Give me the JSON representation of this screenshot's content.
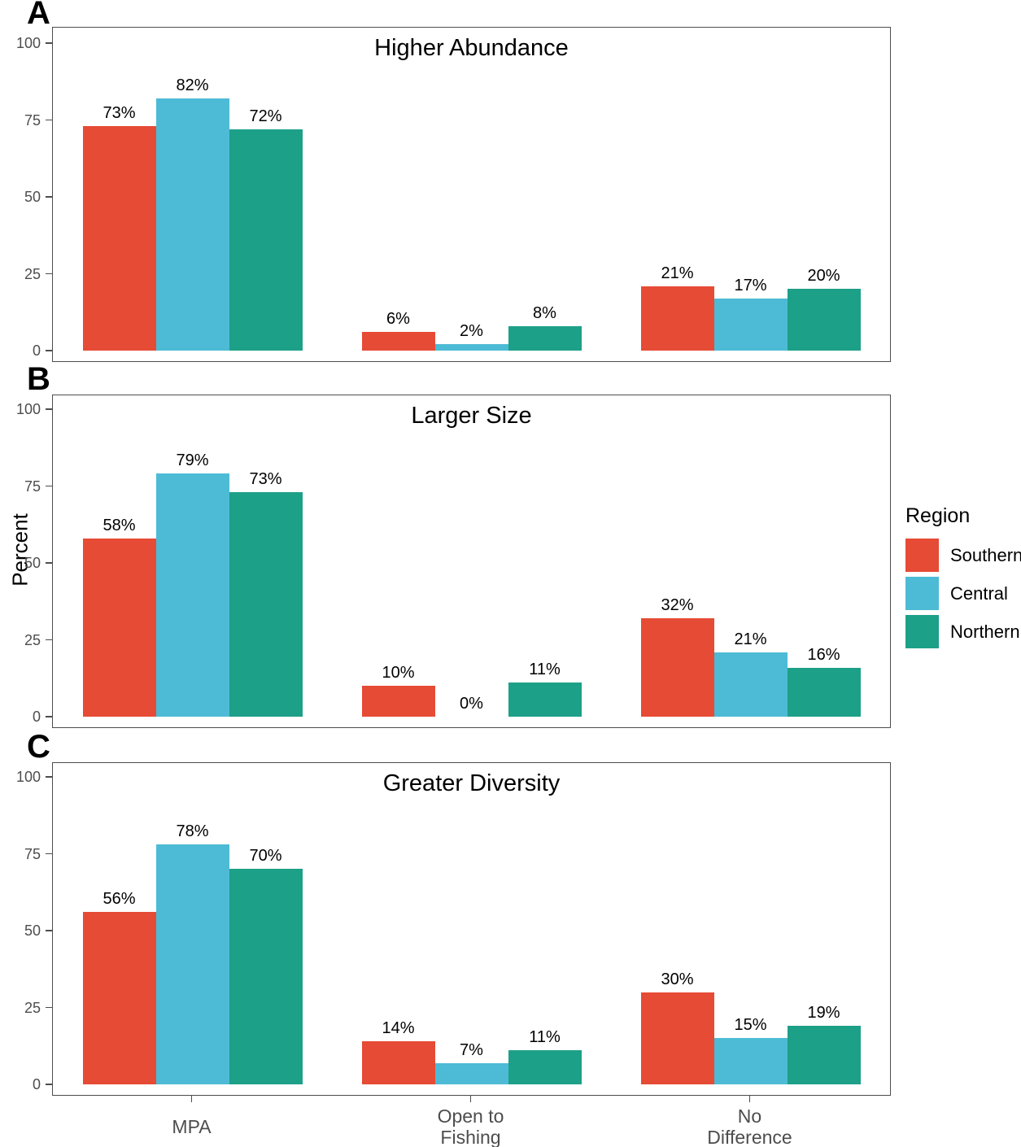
{
  "figure": {
    "y_axis_title": "Percent",
    "y_ticks": [
      0,
      25,
      50,
      75,
      100
    ],
    "x_categories": [
      "MPA",
      "Open to\nFishing",
      "No\nDifference"
    ],
    "axis_color": "#4d4d4d",
    "background": "#ffffff"
  },
  "legend": {
    "title": "Region",
    "position": "right",
    "items": [
      {
        "label": "Southern",
        "color": "#E64B35"
      },
      {
        "label": "Central",
        "color": "#4DBBD5"
      },
      {
        "label": "Northern",
        "color": "#1DA088"
      }
    ]
  },
  "chart_data": [
    {
      "type": "bar",
      "panel_label": "A",
      "title": "Higher Abundance",
      "categories": [
        "MPA",
        "Open to Fishing",
        "No Difference"
      ],
      "ylabel": "Percent",
      "ylim": [
        0,
        100
      ],
      "grid": false,
      "series": [
        {
          "name": "Southern",
          "color": "#E64B35",
          "values": [
            73,
            6,
            21
          ],
          "labels": [
            "73%",
            "6%",
            "21%"
          ]
        },
        {
          "name": "Central",
          "color": "#4DBBD5",
          "values": [
            82,
            2,
            17
          ],
          "labels": [
            "82%",
            "2%",
            "17%"
          ]
        },
        {
          "name": "Northern",
          "color": "#1DA088",
          "values": [
            72,
            8,
            20
          ],
          "labels": [
            "72%",
            "8%",
            "20%"
          ]
        }
      ]
    },
    {
      "type": "bar",
      "panel_label": "B",
      "title": "Larger Size",
      "categories": [
        "MPA",
        "Open to Fishing",
        "No Difference"
      ],
      "ylabel": "Percent",
      "ylim": [
        0,
        100
      ],
      "grid": false,
      "series": [
        {
          "name": "Southern",
          "color": "#E64B35",
          "values": [
            58,
            10,
            32
          ],
          "labels": [
            "58%",
            "10%",
            "32%"
          ]
        },
        {
          "name": "Central",
          "color": "#4DBBD5",
          "values": [
            79,
            0,
            21
          ],
          "labels": [
            "79%",
            "0%",
            "21%"
          ]
        },
        {
          "name": "Northern",
          "color": "#1DA088",
          "values": [
            73,
            11,
            16
          ],
          "labels": [
            "73%",
            "11%",
            "16%"
          ]
        }
      ]
    },
    {
      "type": "bar",
      "panel_label": "C",
      "title": "Greater Diversity",
      "categories": [
        "MPA",
        "Open to Fishing",
        "No Difference"
      ],
      "ylabel": "Percent",
      "ylim": [
        0,
        100
      ],
      "grid": false,
      "series": [
        {
          "name": "Southern",
          "color": "#E64B35",
          "values": [
            56,
            14,
            30
          ],
          "labels": [
            "56%",
            "14%",
            "30%"
          ]
        },
        {
          "name": "Central",
          "color": "#4DBBD5",
          "values": [
            78,
            7,
            15
          ],
          "labels": [
            "78%",
            "7%",
            "15%"
          ]
        },
        {
          "name": "Northern",
          "color": "#1DA088",
          "values": [
            70,
            11,
            19
          ],
          "labels": [
            "70%",
            "11%",
            "19%"
          ]
        }
      ]
    }
  ]
}
